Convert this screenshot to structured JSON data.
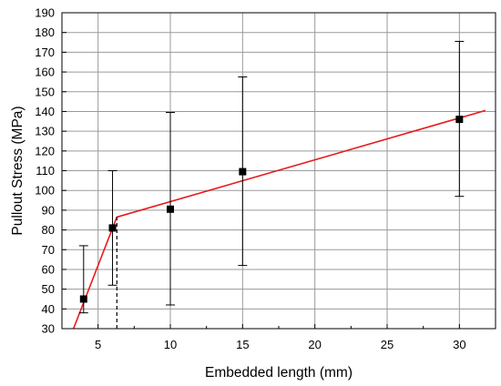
{
  "chart_data": {
    "type": "scatter",
    "title": "",
    "xlabel": "Embedded length (mm)",
    "ylabel": "Pullout Stress (MPa)",
    "xlim": [
      2.5,
      32.5
    ],
    "ylim": [
      30,
      190
    ],
    "xticks": [
      5,
      10,
      15,
      20,
      25,
      30
    ],
    "yticks": [
      30,
      40,
      50,
      60,
      70,
      80,
      90,
      100,
      110,
      120,
      130,
      140,
      150,
      160,
      170,
      180,
      190
    ],
    "grid": true,
    "legend": "none",
    "series": [
      {
        "kind": "points-with-error-bars",
        "points": [
          {
            "x": 4,
            "y": 45,
            "err_low": 38,
            "err_high": 72
          },
          {
            "x": 6,
            "y": 81,
            "err_low": 52,
            "err_high": 110
          },
          {
            "x": 10,
            "y": 90.5,
            "err_low": 42,
            "err_high": 139.5
          },
          {
            "x": 15,
            "y": 109.5,
            "err_low": 62,
            "err_high": 157.5
          },
          {
            "x": 30,
            "y": 136,
            "err_low": 97,
            "err_high": 175.5
          }
        ]
      },
      {
        "kind": "fit-line",
        "color": "#e8191a",
        "points": [
          [
            3.3,
            30
          ],
          [
            6.3,
            86.5
          ],
          [
            31.8,
            140.5
          ]
        ]
      },
      {
        "kind": "dashed-marker",
        "x": 6.3,
        "y_from": 30,
        "y_to": 86.5
      }
    ]
  }
}
